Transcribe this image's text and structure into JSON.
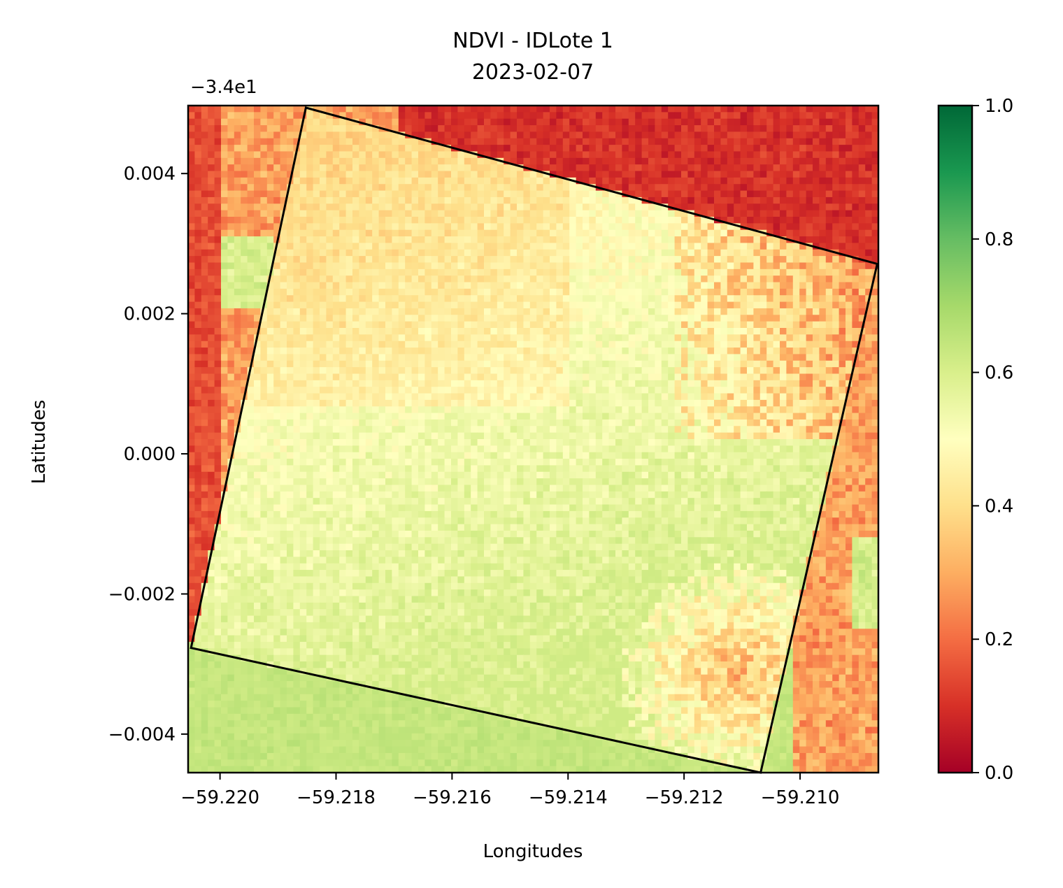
{
  "chart_data": {
    "type": "heatmap",
    "title_line1": "NDVI - IDLote 1",
    "title_line2": "2023-02-07",
    "xlabel": "Longitudes",
    "ylabel": "Latitudes",
    "y_offset_text": "−3.4e1",
    "xlim": [
      -59.22055,
      -59.20865
    ],
    "ylim": [
      -0.00455,
      0.00497
    ],
    "x_ticks": [
      -59.22,
      -59.218,
      -59.216,
      -59.214,
      -59.212,
      -59.21
    ],
    "x_tick_labels": [
      "−59.220",
      "−59.218",
      "−59.216",
      "−59.214",
      "−59.212",
      "−59.210"
    ],
    "y_ticks": [
      0.004,
      0.002,
      0.0,
      -0.002,
      -0.004
    ],
    "y_tick_labels": [
      "0.004",
      "0.002",
      "0.000",
      "−0.002",
      "−0.004"
    ],
    "colorbar": {
      "colormap": "RdYlGn",
      "range": [
        0.0,
        1.0
      ],
      "ticks": [
        0.0,
        0.2,
        0.4,
        0.6,
        0.8,
        1.0
      ],
      "tick_labels": [
        "0.0",
        "0.2",
        "0.4",
        "0.6",
        "0.8",
        "1.0"
      ]
    },
    "field_polygon": [
      [
        -59.21852,
        0.00494
      ],
      [
        -59.20867,
        0.00271
      ],
      [
        -59.21068,
        -0.00455
      ],
      [
        -59.2205,
        -0.00277
      ]
    ],
    "colors": {
      "low": "#a50026",
      "mid": "#ffffbf",
      "high": "#006837"
    }
  }
}
